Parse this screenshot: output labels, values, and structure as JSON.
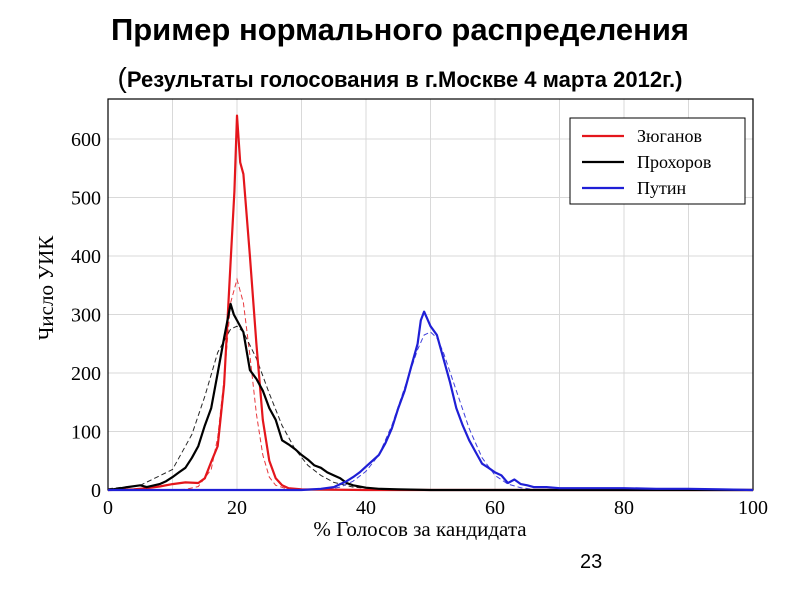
{
  "header": {
    "title": "Пример нормального распределения",
    "subtitle_open": "(",
    "subtitle": "Результаты голосования в г.Москве 4 марта 2012г.)"
  },
  "page_number": "23",
  "colors": {
    "zyuganov": "#e4161c",
    "prokhorov": "#000000",
    "putin": "#1f1fd6",
    "grid": "#d9d9d9"
  },
  "chart_data": {
    "type": "line",
    "xlabel": "% Голосов за кандидата",
    "ylabel": "Число УИК",
    "xlim": [
      0,
      100
    ],
    "ylim": [
      0,
      650
    ],
    "x_ticks": [
      0,
      20,
      40,
      60,
      80,
      100
    ],
    "y_ticks": [
      0,
      100,
      200,
      300,
      400,
      500,
      600
    ],
    "grid": true,
    "legend_position": "top-right",
    "legend": [
      "Зюганов",
      "Прохоров",
      "Путин"
    ],
    "series": [
      {
        "name": "Зюганов",
        "color": "#e4161c",
        "points": [
          [
            0,
            0
          ],
          [
            4,
            1
          ],
          [
            6,
            3
          ],
          [
            8,
            6
          ],
          [
            10,
            10
          ],
          [
            12,
            13
          ],
          [
            14,
            12
          ],
          [
            15,
            20
          ],
          [
            16,
            48
          ],
          [
            17,
            75
          ],
          [
            18,
            180
          ],
          [
            19,
            390
          ],
          [
            19.6,
            510
          ],
          [
            20,
            640
          ],
          [
            20.5,
            560
          ],
          [
            21,
            540
          ],
          [
            22,
            400
          ],
          [
            23,
            250
          ],
          [
            24,
            120
          ],
          [
            25,
            50
          ],
          [
            26,
            20
          ],
          [
            27,
            8
          ],
          [
            28,
            3
          ],
          [
            30,
            1
          ],
          [
            40,
            0
          ],
          [
            100,
            0
          ]
        ],
        "fit": [
          [
            0,
            0
          ],
          [
            12,
            1
          ],
          [
            14,
            6
          ],
          [
            16,
            35
          ],
          [
            17,
            90
          ],
          [
            18,
            190
          ],
          [
            19,
            320
          ],
          [
            20,
            360
          ],
          [
            21,
            320
          ],
          [
            22,
            230
          ],
          [
            23,
            130
          ],
          [
            24,
            60
          ],
          [
            25,
            22
          ],
          [
            26,
            8
          ],
          [
            28,
            1
          ],
          [
            32,
            0
          ]
        ]
      },
      {
        "name": "Прохоров",
        "color": "#000000",
        "points": [
          [
            0,
            0
          ],
          [
            2,
            3
          ],
          [
            3,
            5
          ],
          [
            5,
            8
          ],
          [
            6,
            5
          ],
          [
            8,
            10
          ],
          [
            9,
            15
          ],
          [
            10,
            22
          ],
          [
            11,
            30
          ],
          [
            12,
            38
          ],
          [
            13,
            55
          ],
          [
            14,
            75
          ],
          [
            15,
            110
          ],
          [
            16,
            140
          ],
          [
            17,
            200
          ],
          [
            18,
            260
          ],
          [
            19,
            318
          ],
          [
            19.5,
            300
          ],
          [
            20,
            290
          ],
          [
            21,
            270
          ],
          [
            22,
            205
          ],
          [
            23,
            190
          ],
          [
            24,
            170
          ],
          [
            25,
            140
          ],
          [
            26,
            120
          ],
          [
            27,
            85
          ],
          [
            28,
            78
          ],
          [
            29,
            70
          ],
          [
            30,
            60
          ],
          [
            31,
            52
          ],
          [
            32,
            42
          ],
          [
            33,
            38
          ],
          [
            34,
            30
          ],
          [
            35,
            25
          ],
          [
            36,
            20
          ],
          [
            37,
            12
          ],
          [
            38,
            8
          ],
          [
            40,
            4
          ],
          [
            42,
            2
          ],
          [
            45,
            1
          ],
          [
            50,
            0
          ],
          [
            100,
            0
          ]
        ],
        "fit": [
          [
            0,
            2
          ],
          [
            5,
            8
          ],
          [
            10,
            35
          ],
          [
            13,
            95
          ],
          [
            15,
            160
          ],
          [
            17,
            235
          ],
          [
            19,
            275
          ],
          [
            20,
            280
          ],
          [
            21,
            270
          ],
          [
            23,
            225
          ],
          [
            25,
            165
          ],
          [
            27,
            110
          ],
          [
            29,
            70
          ],
          [
            31,
            42
          ],
          [
            33,
            25
          ],
          [
            35,
            13
          ],
          [
            38,
            5
          ],
          [
            42,
            1
          ],
          [
            46,
            0
          ]
        ]
      },
      {
        "name": "Путин",
        "color": "#1f1fd6",
        "points": [
          [
            0,
            0
          ],
          [
            30,
            0
          ],
          [
            33,
            2
          ],
          [
            35,
            5
          ],
          [
            36,
            10
          ],
          [
            37,
            15
          ],
          [
            38,
            22
          ],
          [
            39,
            30
          ],
          [
            40,
            40
          ],
          [
            41,
            50
          ],
          [
            42,
            60
          ],
          [
            43,
            80
          ],
          [
            44,
            105
          ],
          [
            45,
            140
          ],
          [
            46,
            170
          ],
          [
            47,
            210
          ],
          [
            48,
            250
          ],
          [
            48.5,
            290
          ],
          [
            49,
            305
          ],
          [
            50,
            280
          ],
          [
            51,
            265
          ],
          [
            52,
            225
          ],
          [
            53,
            185
          ],
          [
            54,
            140
          ],
          [
            55,
            110
          ],
          [
            56,
            85
          ],
          [
            57,
            65
          ],
          [
            58,
            45
          ],
          [
            59,
            38
          ],
          [
            60,
            30
          ],
          [
            61,
            25
          ],
          [
            62,
            12
          ],
          [
            63,
            18
          ],
          [
            64,
            10
          ],
          [
            65,
            8
          ],
          [
            66,
            5
          ],
          [
            68,
            5
          ],
          [
            70,
            3
          ],
          [
            75,
            3
          ],
          [
            80,
            3
          ],
          [
            85,
            2
          ],
          [
            90,
            2
          ],
          [
            95,
            1
          ],
          [
            100,
            0
          ]
        ],
        "fit": [
          [
            34,
            1
          ],
          [
            36,
            5
          ],
          [
            38,
            15
          ],
          [
            40,
            32
          ],
          [
            42,
            60
          ],
          [
            44,
            110
          ],
          [
            46,
            175
          ],
          [
            48,
            240
          ],
          [
            49,
            265
          ],
          [
            50,
            270
          ],
          [
            51,
            260
          ],
          [
            52,
            235
          ],
          [
            54,
            170
          ],
          [
            56,
            105
          ],
          [
            58,
            55
          ],
          [
            60,
            25
          ],
          [
            62,
            10
          ],
          [
            64,
            4
          ],
          [
            66,
            1
          ],
          [
            68,
            0
          ]
        ]
      }
    ]
  }
}
